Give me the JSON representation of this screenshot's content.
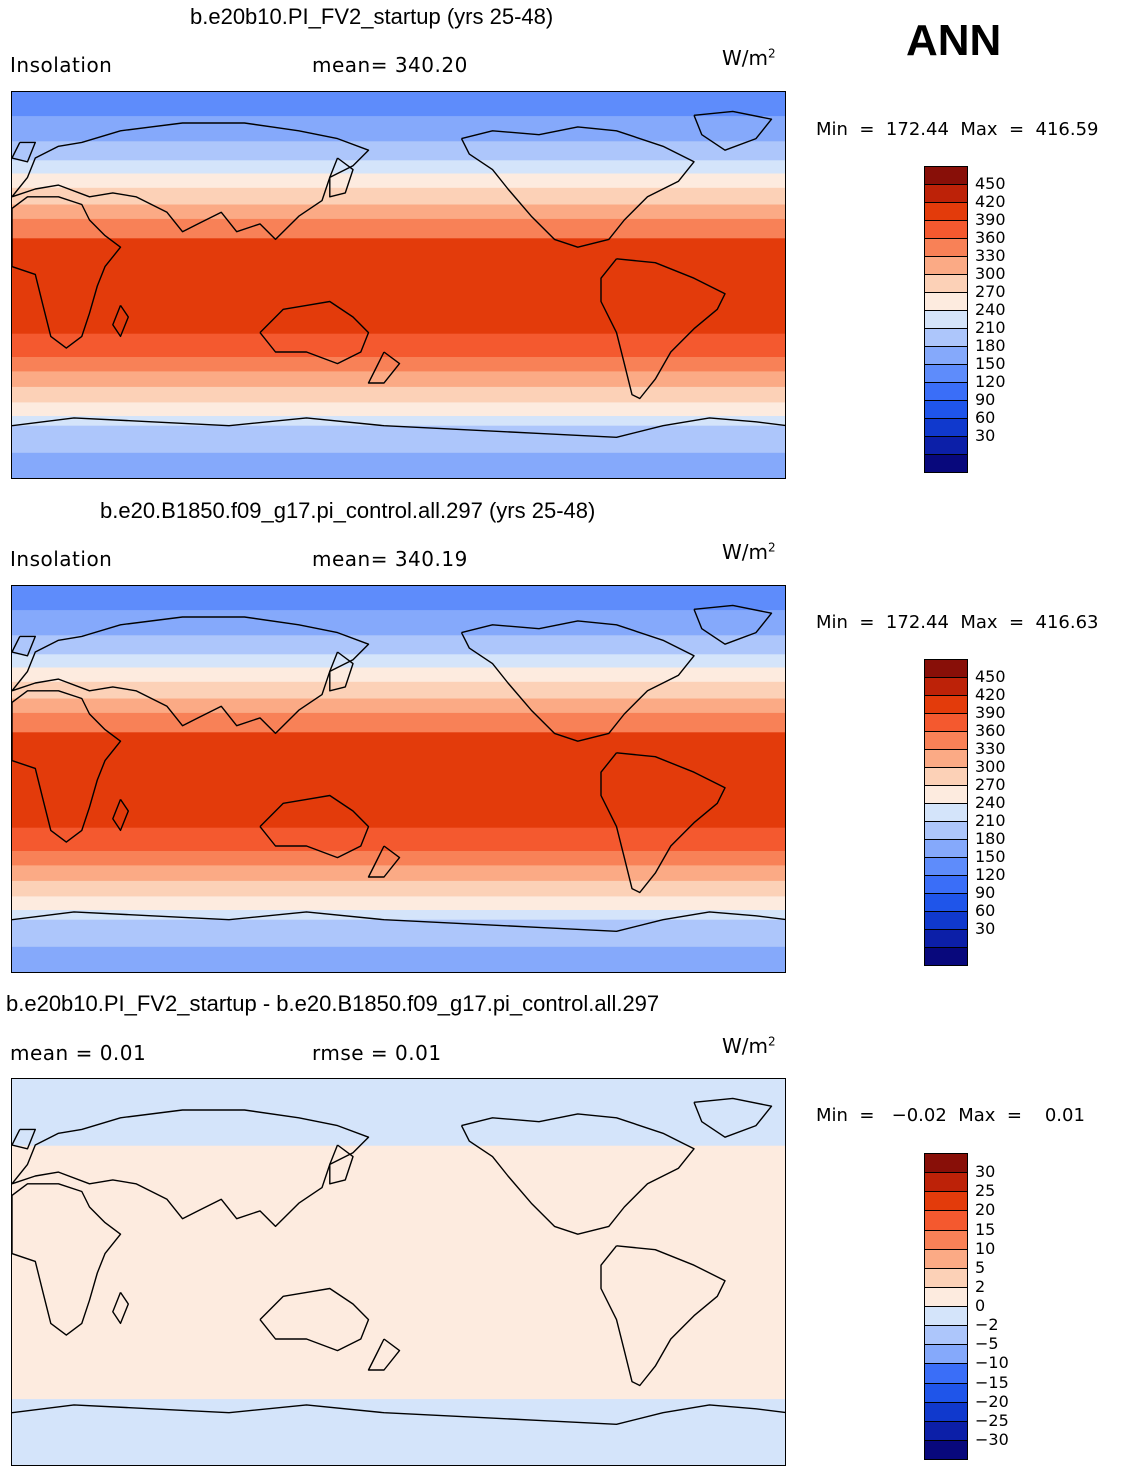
{
  "season": "ANN",
  "colors": {
    "warm_scale": [
      "#08087c",
      "#0c1fa8",
      "#1039cd",
      "#1f55ea",
      "#3a6ef8",
      "#5e8cfb",
      "#85a9fb",
      "#adc6fb",
      "#d4e4fa",
      "#fdebdf",
      "#fcd1b7",
      "#fbaa85",
      "#f88157",
      "#f4592f",
      "#e33b0b",
      "#bd2208",
      "#880f08"
    ],
    "diff_scale": [
      "#08087c",
      "#0c1fa8",
      "#1039cd",
      "#1f55ea",
      "#3a6ef8",
      "#85a9fb",
      "#adc6fb",
      "#d4e4fa",
      "#fdebdf",
      "#fcd1b7",
      "#fbaa85",
      "#f88157",
      "#f4592f",
      "#e33b0b",
      "#bd2208",
      "#880f08"
    ],
    "coastline": "#000000"
  },
  "panels": [
    {
      "title": "b.e20b10.PI_FV2_startup (yrs 25-48)",
      "left_label": "Insolation",
      "center_label": "mean=  340.20",
      "units": "W/m",
      "units_exp": "2",
      "minmax": "Min  =  172.44  Max  =  416.59",
      "colorbar_ticks": [
        "450",
        "420",
        "390",
        "360",
        "330",
        "300",
        "270",
        "240",
        "210",
        "180",
        "150",
        "120",
        "90",
        "60",
        "30"
      ]
    },
    {
      "title": "b.e20.B1850.f09_g17.pi_control.all.297 (yrs 25-48)",
      "left_label": "Insolation",
      "center_label": "mean=  340.19",
      "units": "W/m",
      "units_exp": "2",
      "minmax": "Min  =  172.44  Max  =  416.63",
      "colorbar_ticks": [
        "450",
        "420",
        "390",
        "360",
        "330",
        "300",
        "270",
        "240",
        "210",
        "180",
        "150",
        "120",
        "90",
        "60",
        "30"
      ]
    },
    {
      "title": "b.e20b10.PI_FV2_startup - b.e20.B1850.f09_g17.pi_control.all.297",
      "left_label": "mean =    0.01",
      "center_label": "rmse =    0.01",
      "units": "W/m",
      "units_exp": "2",
      "minmax": "Min  =   −0.02  Max  =    0.01",
      "colorbar_ticks": [
        "30",
        "25",
        "20",
        "15",
        "10",
        "5",
        "2",
        "0",
        "−2",
        "−5",
        "−10",
        "−15",
        "−20",
        "−25",
        "−30"
      ]
    }
  ]
}
